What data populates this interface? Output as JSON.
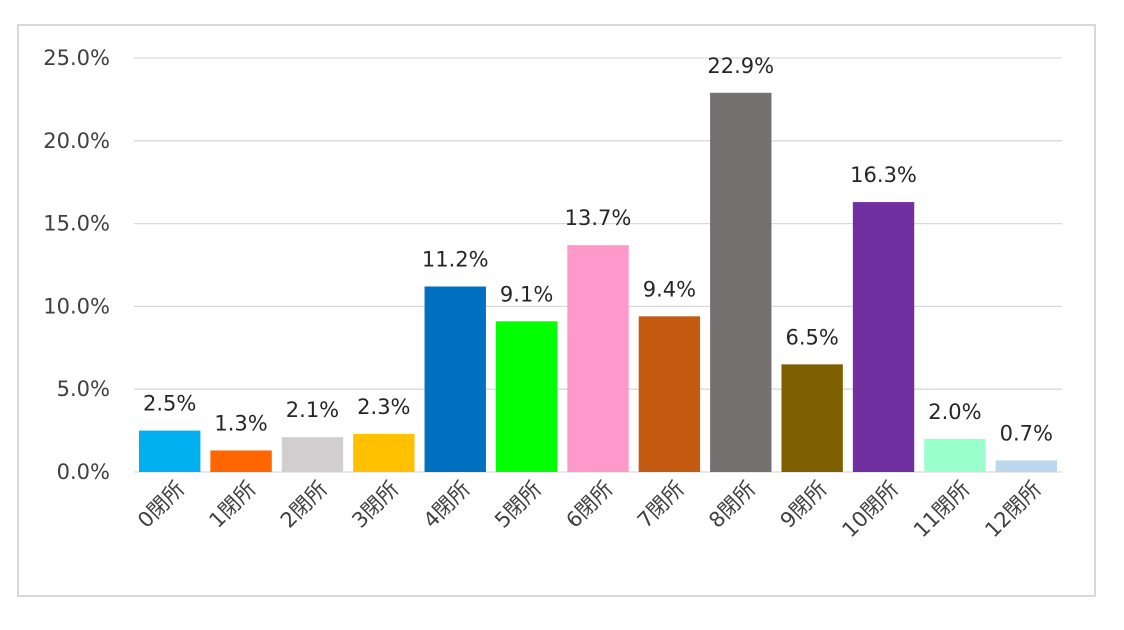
{
  "chart_data": {
    "type": "bar",
    "categories": [
      "0閉所",
      "1閉所",
      "2閉所",
      "3閉所",
      "4閉所",
      "5閉所",
      "6閉所",
      "7閉所",
      "8閉所",
      "9閉所",
      "10閉所",
      "11閉所",
      "12閉所"
    ],
    "values": [
      2.5,
      1.3,
      2.1,
      2.3,
      11.2,
      9.1,
      13.7,
      9.4,
      22.9,
      6.5,
      16.3,
      2.0,
      0.7
    ],
    "data_labels": [
      "2.5%",
      "1.3%",
      "2.1%",
      "2.3%",
      "11.2%",
      "9.1%",
      "13.7%",
      "9.4%",
      "22.9%",
      "6.5%",
      "16.3%",
      "2.0%",
      "0.7%"
    ],
    "colors": [
      "#00b0f0",
      "#ff6600",
      "#d0cece",
      "#ffc000",
      "#0070c0",
      "#00ff00",
      "#ff99cc",
      "#c55a11",
      "#767171",
      "#7f6000",
      "#7030a0",
      "#99ffcc",
      "#bdd7ee"
    ],
    "ylim": [
      0,
      25
    ],
    "yticks": [
      0,
      5,
      10,
      15,
      20,
      25
    ],
    "ytick_labels": [
      "0.0%",
      "5.0%",
      "10.0%",
      "15.0%",
      "20.0%",
      "25.0%"
    ],
    "grid": true,
    "title": "",
    "xlabel": "",
    "ylabel": ""
  }
}
